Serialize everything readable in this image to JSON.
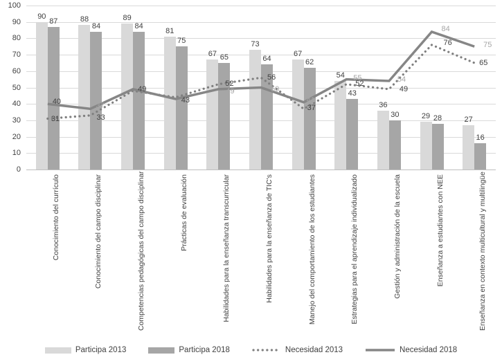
{
  "chart_data": {
    "type": "bar",
    "subtype": "combo-bar-line",
    "title": "",
    "xlabel": "",
    "ylabel": "",
    "categories": [
      "Conocimiento del currículo",
      "Conocimiento del campo disciplinar",
      "Competencias pedagógicas del campo disciplinar",
      "Prácticas de evaluación",
      "Habilidades para la enseñanza transcurricular",
      "Habilidades para la enseñanza de TIC's",
      "Manejo del comportamiento de los estudiantes",
      "Estrategias para el aprendizaje individualizado",
      "Gestión y administración de la escuela",
      "Enseñanza a estudiantes con NEE",
      "Enseñanza en contexto multicultural y multilingüe"
    ],
    "series": [
      {
        "name": "Participa 2013",
        "type": "bar",
        "color": "#d9d9d9",
        "values": [
          90,
          88,
          89,
          81,
          67,
          73,
          67,
          54,
          36,
          29,
          27
        ]
      },
      {
        "name": "Participa 2018",
        "type": "bar",
        "color": "#a6a6a6",
        "values": [
          87,
          84,
          84,
          75,
          65,
          64,
          62,
          43,
          30,
          28,
          16
        ]
      },
      {
        "name": "Necesidad 2013",
        "type": "line",
        "line_style": "dotted",
        "color": "#7f7f7f",
        "values": [
          31,
          33,
          48,
          44,
          52,
          56,
          37,
          52,
          49,
          76,
          65
        ],
        "visible_labels": [
          "31",
          "33",
          "",
          "",
          "52",
          "56",
          "37",
          "52",
          "49",
          "76",
          "65"
        ]
      },
      {
        "name": "Necesidad 2018",
        "type": "line",
        "line_style": "solid",
        "color": "#868686",
        "values": [
          40,
          37,
          49,
          43,
          49,
          50,
          41,
          55,
          54,
          84,
          75
        ],
        "visible_labels": [
          "40",
          "37",
          "49",
          "43",
          "49",
          "50",
          "41",
          "55",
          "54",
          "84",
          "75"
        ]
      }
    ],
    "y_axis": {
      "min": 0,
      "max": 100,
      "step": 10,
      "tick_labels": [
        "0",
        "10",
        "20",
        "30",
        "40",
        "50",
        "60",
        "70",
        "80",
        "90",
        "100"
      ]
    },
    "grid": "horizontal",
    "legend_position": "bottom",
    "label_colors": {
      "bar_labels": "#404040",
      "necesidad_2013_labels": "#404040",
      "necesidad_2018_labels": "#a6a6a6"
    }
  }
}
